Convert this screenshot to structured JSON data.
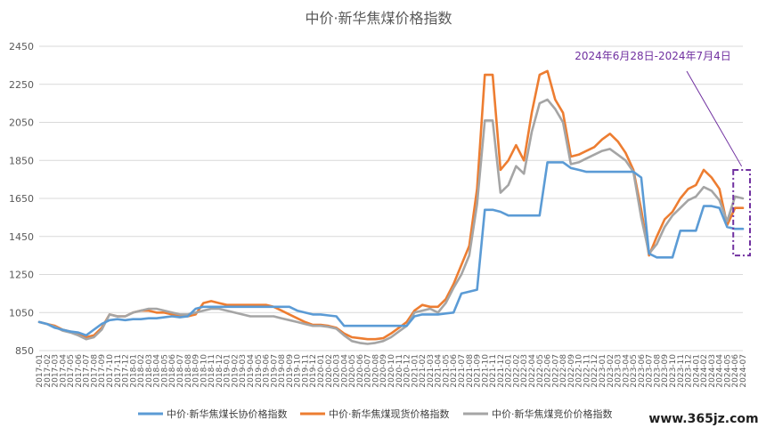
{
  "chart_data": {
    "type": "line",
    "title": "中价·新华焦煤价格指数",
    "xlabel": "",
    "ylabel": "",
    "ylim": [
      850,
      2450
    ],
    "yticks": [
      850,
      1050,
      1250,
      1450,
      1650,
      1850,
      2050,
      2250,
      2450
    ],
    "grid": "horizontal",
    "legend_position": "bottom",
    "x": [
      "2017-01",
      "2017-02",
      "2017-03",
      "2017-04",
      "2017-05",
      "2017-06",
      "2017-07",
      "2017-08",
      "2017-09",
      "2017-10",
      "2017-11",
      "2017-12",
      "2018-01",
      "2018-02",
      "2018-03",
      "2018-04",
      "2018-05",
      "2018-06",
      "2018-07",
      "2018-08",
      "2018-09",
      "2018-10",
      "2018-11",
      "2018-12",
      "2019-01",
      "2019-02",
      "2019-03",
      "2019-04",
      "2019-05",
      "2019-06",
      "2019-07",
      "2019-08",
      "2019-09",
      "2019-10",
      "2019-11",
      "2019-12",
      "2020-01",
      "2020-02",
      "2020-03",
      "2020-04",
      "2020-05",
      "2020-06",
      "2020-07",
      "2020-08",
      "2020-09",
      "2020-10",
      "2020-11",
      "2020-12",
      "2021-01",
      "2021-02",
      "2021-03",
      "2021-04",
      "2021-05",
      "2021-06",
      "2021-07",
      "2021-08",
      "2021-09",
      "2021-10",
      "2021-11",
      "2021-12",
      "2022-01",
      "2022-02",
      "2022-03",
      "2022-04",
      "2022-05",
      "2022-06",
      "2022-07",
      "2022-08",
      "2022-09",
      "2022-10",
      "2022-11",
      "2022-12",
      "2023-01",
      "2023-02",
      "2023-03",
      "2023-04",
      "2023-05",
      "2023-06",
      "2023-07",
      "2023-08",
      "2023-09",
      "2023-10",
      "2023-11",
      "2023-12",
      "2024-01",
      "2024-02",
      "2024-03",
      "2024-04",
      "2024-05",
      "2024-06",
      "2024-07"
    ],
    "series": [
      {
        "name": "中价·新华焦煤长协价格指数",
        "color": "#5B9BD5",
        "values": [
          1000,
          990,
          970,
          960,
          950,
          945,
          930,
          960,
          990,
          1010,
          1015,
          1010,
          1015,
          1015,
          1020,
          1020,
          1025,
          1030,
          1025,
          1030,
          1070,
          1080,
          1080,
          1080,
          1080,
          1080,
          1080,
          1080,
          1080,
          1080,
          1080,
          1080,
          1080,
          1060,
          1050,
          1040,
          1040,
          1035,
          1030,
          980,
          980,
          980,
          980,
          980,
          980,
          980,
          980,
          980,
          1030,
          1040,
          1040,
          1040,
          1045,
          1050,
          1150,
          1160,
          1170,
          1590,
          1590,
          1580,
          1560,
          1560,
          1560,
          1560,
          1560,
          1840,
          1840,
          1840,
          1810,
          1800,
          1790,
          1790,
          1790,
          1790,
          1790,
          1790,
          1790,
          1760,
          1360,
          1340,
          1340,
          1340,
          1480,
          1480,
          1480,
          1610,
          1610,
          1600,
          1500,
          1490,
          1490
        ]
      },
      {
        "name": "中价·新华焦煤现货价格指数",
        "color": "#ED7D31",
        "values": [
          1000,
          990,
          980,
          960,
          950,
          940,
          920,
          930,
          970,
          1040,
          1030,
          1030,
          1050,
          1060,
          1060,
          1050,
          1050,
          1040,
          1030,
          1030,
          1040,
          1100,
          1110,
          1100,
          1090,
          1090,
          1090,
          1090,
          1090,
          1090,
          1080,
          1060,
          1040,
          1020,
          1000,
          985,
          985,
          980,
          970,
          940,
          920,
          915,
          910,
          910,
          915,
          940,
          970,
          1000,
          1060,
          1090,
          1080,
          1080,
          1120,
          1200,
          1300,
          1400,
          1700,
          2300,
          2300,
          1800,
          1850,
          1930,
          1850,
          2100,
          2300,
          2320,
          2170,
          2100,
          1870,
          1880,
          1900,
          1920,
          1960,
          1990,
          1950,
          1890,
          1800,
          1590,
          1350,
          1450,
          1540,
          1580,
          1650,
          1700,
          1720,
          1800,
          1760,
          1700,
          1510,
          1600,
          1600
        ]
      },
      {
        "name": "中价·新华焦煤竞价价格指数",
        "color": "#A5A5A5",
        "values": [
          1000,
          990,
          975,
          955,
          945,
          930,
          910,
          920,
          960,
          1040,
          1030,
          1030,
          1050,
          1060,
          1070,
          1070,
          1060,
          1050,
          1040,
          1040,
          1050,
          1060,
          1070,
          1070,
          1060,
          1050,
          1040,
          1030,
          1030,
          1030,
          1030,
          1020,
          1010,
          1000,
          990,
          980,
          980,
          975,
          965,
          930,
          900,
          890,
          885,
          890,
          900,
          920,
          950,
          980,
          1050,
          1060,
          1070,
          1050,
          1100,
          1180,
          1250,
          1350,
          1620,
          2060,
          2060,
          1680,
          1720,
          1820,
          1780,
          2000,
          2150,
          2170,
          2120,
          2050,
          1830,
          1840,
          1860,
          1880,
          1900,
          1910,
          1880,
          1850,
          1790,
          1550,
          1360,
          1410,
          1500,
          1560,
          1600,
          1640,
          1660,
          1710,
          1690,
          1640,
          1530,
          1660,
          1650
        ]
      }
    ],
    "annotation": {
      "text": "2024年6月28日-2024年7月4日",
      "color": "#7030A0",
      "x_range": [
        "2024-06",
        "2024-07"
      ],
      "y_range": [
        1350,
        1800
      ]
    }
  },
  "watermark": "www.365jz.com"
}
